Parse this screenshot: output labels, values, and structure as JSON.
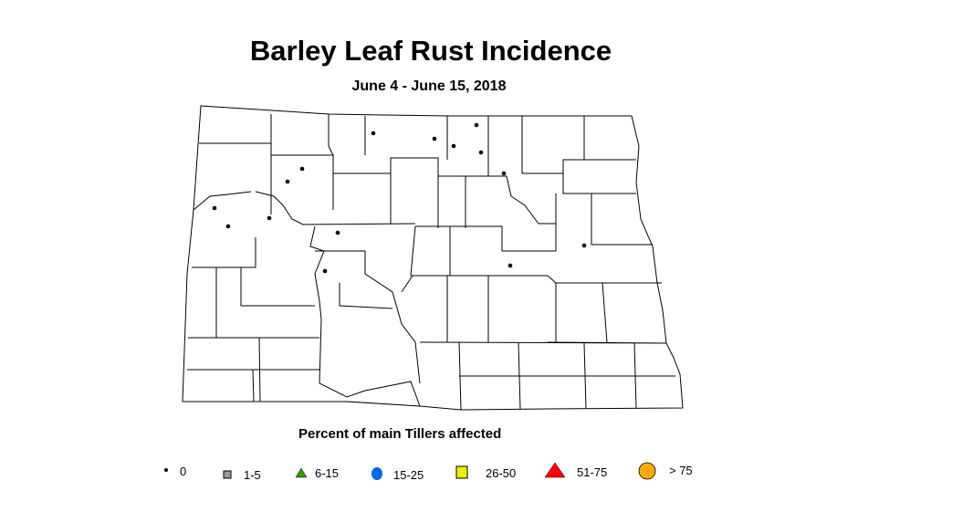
{
  "title": "Barley Leaf Rust Incidence",
  "subtitle": "June 4 - June 15, 2018",
  "legend": {
    "title": "Percent of main Tillers affected",
    "items": [
      {
        "label": "0",
        "shape": "dot",
        "color": "#000000"
      },
      {
        "label": "1-5",
        "shape": "square",
        "color": "#999999"
      },
      {
        "label": "6-15",
        "shape": "triangle",
        "color": "#339900"
      },
      {
        "label": "15-25",
        "shape": "circle",
        "color": "#0066ee"
      },
      {
        "label": "26-50",
        "shape": "square",
        "color": "#eeee00"
      },
      {
        "label": "51-75",
        "shape": "triangle",
        "color": "#ff0000"
      },
      {
        "label": "> 75",
        "shape": "circle",
        "color": "#ffaa00"
      }
    ]
  },
  "region": "North Dakota counties",
  "observations_category": "0"
}
